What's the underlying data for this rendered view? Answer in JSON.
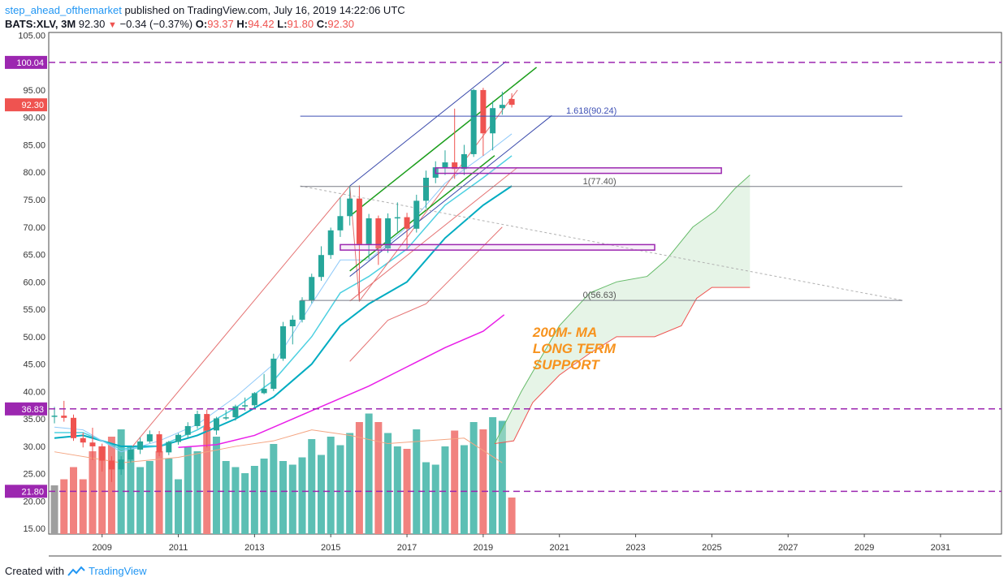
{
  "header": {
    "author": "step_ahead_ofthemarket",
    "published_text": "published on TradingView.com, July 16, 2019 14:22:06 UTC",
    "symbol": "BATS:XLV, 3M",
    "last": "92.30",
    "change": "−0.34 (−0.37%)",
    "o_label": "O:",
    "o": "93.37",
    "h_label": "H:",
    "h": "94.42",
    "l_label": "L:",
    "l": "91.80",
    "c_label": "C:",
    "c": "92.30"
  },
  "footer": {
    "created_with": "Created with",
    "brand": "TradingView"
  },
  "colors": {
    "up": "#26a69a",
    "down": "#ef5350",
    "purple": "#9c27b0",
    "fib_blue": "#3f51b5",
    "grey": "#787b86",
    "green": "#1b9e1b",
    "magenta": "#e91ee8",
    "cyan": "#00bcd4",
    "light_cyan": "#4dd0e1",
    "annotation": "#f7931e"
  },
  "chart_data": {
    "type": "candlestick",
    "xlim": [
      2007.6,
      2032.6
    ],
    "ylim": [
      14,
      105.5
    ],
    "y_ticks": [
      "15.00",
      "20.00",
      "25.00",
      "30.00",
      "35.00",
      "40.00",
      "45.00",
      "50.00",
      "55.00",
      "60.00",
      "65.00",
      "70.00",
      "75.00",
      "80.00",
      "85.00",
      "90.00",
      "95.00",
      "100.00",
      "105.00"
    ],
    "x_ticks": [
      "2009",
      "2011",
      "2013",
      "2015",
      "2017",
      "2019",
      "2021",
      "2023",
      "2025",
      "2027",
      "2029",
      "2031"
    ],
    "price_tags": [
      {
        "label": "100.04",
        "value": 100.04,
        "color": "#9c27b0"
      },
      {
        "label": "92.30",
        "value": 92.3,
        "color": "#ef5350"
      },
      {
        "label": "36.83",
        "value": 36.83,
        "color": "#9c27b0"
      },
      {
        "label": "21.80",
        "value": 21.8,
        "color": "#9c27b0"
      }
    ],
    "horizontal_levels": [
      100.04,
      36.83,
      21.8
    ],
    "fib_levels": [
      {
        "label": "1.618(90.24)",
        "value": 90.24,
        "x_start": 2014.2,
        "x_end": 2030.0
      },
      {
        "label": "1(77.40)",
        "value": 77.4,
        "x_start": 2014.2,
        "x_end": 2030.0
      },
      {
        "label": "0(56.63)",
        "value": 56.63,
        "x_start": 2014.2,
        "x_end": 2030.0
      }
    ],
    "rectangles": [
      {
        "x1": 2017.75,
        "x2": 2025.25,
        "y1": 79.8,
        "y2": 80.8
      },
      {
        "x1": 2015.25,
        "x2": 2023.5,
        "y1": 65.8,
        "y2": 66.8
      }
    ],
    "annotation": [
      "200M- MA",
      "LONG TERM",
      "SUPPORT"
    ],
    "candles": [
      {
        "t": 2007.75,
        "o": 35.5,
        "h": 37.2,
        "l": 34.2,
        "c": 35.6
      },
      {
        "t": 2008.0,
        "o": 35.6,
        "h": 38.3,
        "l": 34.5,
        "c": 35.2
      },
      {
        "t": 2008.25,
        "o": 35.2,
        "h": 35.8,
        "l": 31.0,
        "c": 31.5
      },
      {
        "t": 2008.5,
        "o": 31.5,
        "h": 32.5,
        "l": 29.8,
        "c": 30.7
      },
      {
        "t": 2008.75,
        "o": 30.7,
        "h": 33.4,
        "l": 27.5,
        "c": 30.0
      },
      {
        "t": 2009.0,
        "o": 30.0,
        "h": 30.5,
        "l": 25.4,
        "c": 27.4
      },
      {
        "t": 2009.25,
        "o": 27.4,
        "h": 28.2,
        "l": 23.5,
        "c": 25.8
      },
      {
        "t": 2009.5,
        "o": 25.8,
        "h": 28.2,
        "l": 24.8,
        "c": 27.6
      },
      {
        "t": 2009.75,
        "o": 27.6,
        "h": 29.8,
        "l": 27.0,
        "c": 29.4
      },
      {
        "t": 2010.0,
        "o": 29.4,
        "h": 31.6,
        "l": 28.6,
        "c": 30.9
      },
      {
        "t": 2010.25,
        "o": 30.9,
        "h": 32.9,
        "l": 30.6,
        "c": 32.2
      },
      {
        "t": 2010.5,
        "o": 32.2,
        "h": 32.8,
        "l": 28.2,
        "c": 28.9
      },
      {
        "t": 2010.75,
        "o": 28.9,
        "h": 31.0,
        "l": 28.4,
        "c": 30.8
      },
      {
        "t": 2011.0,
        "o": 30.8,
        "h": 32.4,
        "l": 30.3,
        "c": 32.1
      },
      {
        "t": 2011.25,
        "o": 32.1,
        "h": 34.4,
        "l": 31.5,
        "c": 33.7
      },
      {
        "t": 2011.5,
        "o": 33.7,
        "h": 36.5,
        "l": 33.2,
        "c": 35.9
      },
      {
        "t": 2011.75,
        "o": 35.9,
        "h": 36.7,
        "l": 29.8,
        "c": 32.9
      },
      {
        "t": 2012.0,
        "o": 32.9,
        "h": 35.4,
        "l": 32.1,
        "c": 35.1
      },
      {
        "t": 2012.25,
        "o": 35.1,
        "h": 36.6,
        "l": 34.8,
        "c": 35.3
      },
      {
        "t": 2012.5,
        "o": 35.3,
        "h": 37.6,
        "l": 34.7,
        "c": 37.3
      },
      {
        "t": 2012.75,
        "o": 37.3,
        "h": 38.9,
        "l": 36.5,
        "c": 37.5
      },
      {
        "t": 2013.0,
        "o": 37.5,
        "h": 39.9,
        "l": 37.0,
        "c": 39.7
      },
      {
        "t": 2013.25,
        "o": 39.7,
        "h": 43.2,
        "l": 39.5,
        "c": 40.5
      },
      {
        "t": 2013.5,
        "o": 40.5,
        "h": 46.9,
        "l": 40.1,
        "c": 46.0
      },
      {
        "t": 2013.75,
        "o": 46.0,
        "h": 52.7,
        "l": 45.6,
        "c": 51.9
      },
      {
        "t": 2014.0,
        "o": 51.9,
        "h": 53.9,
        "l": 48.6,
        "c": 53.1
      },
      {
        "t": 2014.25,
        "o": 53.1,
        "h": 57.2,
        "l": 52.6,
        "c": 56.6
      },
      {
        "t": 2014.5,
        "o": 56.6,
        "h": 61.5,
        "l": 56.1,
        "c": 60.9
      },
      {
        "t": 2014.75,
        "o": 60.9,
        "h": 66.5,
        "l": 60.2,
        "c": 64.9
      },
      {
        "t": 2015.0,
        "o": 64.9,
        "h": 69.9,
        "l": 64.2,
        "c": 69.4
      },
      {
        "t": 2015.25,
        "o": 69.4,
        "h": 75.4,
        "l": 68.2,
        "c": 72.0
      },
      {
        "t": 2015.5,
        "o": 72.0,
        "h": 77.5,
        "l": 70.3,
        "c": 75.2
      },
      {
        "t": 2015.75,
        "o": 75.2,
        "h": 77.6,
        "l": 56.7,
        "c": 66.9
      },
      {
        "t": 2016.0,
        "o": 66.9,
        "h": 72.4,
        "l": 64.2,
        "c": 71.6
      },
      {
        "t": 2016.25,
        "o": 71.6,
        "h": 72.1,
        "l": 63.1,
        "c": 66.1
      },
      {
        "t": 2016.5,
        "o": 66.1,
        "h": 72.5,
        "l": 65.3,
        "c": 71.6
      },
      {
        "t": 2016.75,
        "o": 71.6,
        "h": 74.5,
        "l": 69.1,
        "c": 71.8
      },
      {
        "t": 2017.0,
        "o": 71.8,
        "h": 72.6,
        "l": 66.0,
        "c": 69.7
      },
      {
        "t": 2017.25,
        "o": 69.7,
        "h": 75.9,
        "l": 69.0,
        "c": 74.8
      },
      {
        "t": 2017.5,
        "o": 74.8,
        "h": 80.3,
        "l": 73.4,
        "c": 79.0
      },
      {
        "t": 2017.75,
        "o": 79.0,
        "h": 82.0,
        "l": 78.0,
        "c": 80.9
      },
      {
        "t": 2018.0,
        "o": 80.9,
        "h": 84.0,
        "l": 79.5,
        "c": 81.8
      },
      {
        "t": 2018.25,
        "o": 81.8,
        "h": 91.6,
        "l": 78.8,
        "c": 80.6
      },
      {
        "t": 2018.5,
        "o": 80.6,
        "h": 85.0,
        "l": 79.5,
        "c": 83.3
      },
      {
        "t": 2018.75,
        "o": 83.3,
        "h": 95.2,
        "l": 82.8,
        "c": 95.0
      },
      {
        "t": 2019.0,
        "o": 95.0,
        "h": 95.4,
        "l": 83.0,
        "c": 87.1
      },
      {
        "t": 2019.25,
        "o": 87.1,
        "h": 93.0,
        "l": 84.0,
        "c": 91.7
      },
      {
        "t": 2019.5,
        "o": 91.7,
        "h": 94.7,
        "l": 90.5,
        "c": 92.3
      },
      {
        "t": 2019.75,
        "o": 93.37,
        "h": 94.42,
        "l": 91.8,
        "c": 92.3
      }
    ]
  }
}
